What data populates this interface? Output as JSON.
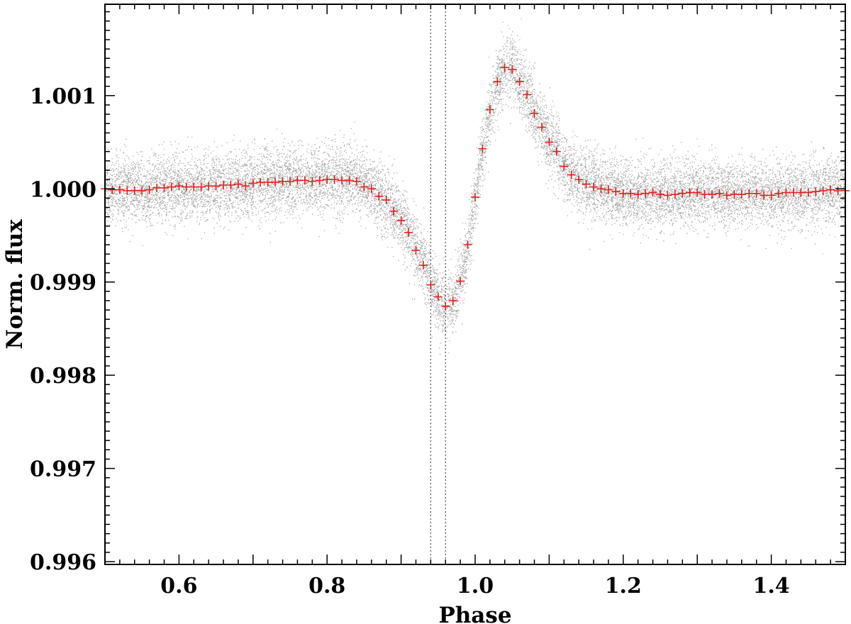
{
  "chart_data": {
    "type": "scatter",
    "xlabel": "Phase",
    "ylabel": "Norm. flux",
    "xlim": [
      0.5,
      1.5
    ],
    "ylim": [
      0.99597,
      1.00198
    ],
    "xticks": [
      0.6,
      0.8,
      1.0,
      1.2,
      1.4
    ],
    "xtick_labels": [
      "0.6",
      "0.8",
      "1.0",
      "1.2",
      "1.4"
    ],
    "yticks": [
      0.996,
      0.997,
      0.998,
      0.999,
      1.0,
      1.001
    ],
    "ytick_labels": [
      "0.996",
      "0.997",
      "0.998",
      "0.999",
      "1.000",
      "1.001"
    ],
    "grid": false,
    "legend": "none",
    "vertical_lines": [
      0.94,
      0.96
    ],
    "colors": {
      "raw_points": "#a8a8a8",
      "binned_markers": "#dd2222",
      "axes": "#000000",
      "vertical_lines": "#666666"
    },
    "raw_scatter_noise_sigma": 0.00018,
    "series": [
      {
        "marker": "plus",
        "x": [
          0.5,
          0.51,
          0.52,
          0.53,
          0.54,
          0.55,
          0.56,
          0.57,
          0.58,
          0.59,
          0.6,
          0.61,
          0.62,
          0.63,
          0.64,
          0.65,
          0.66,
          0.67,
          0.68,
          0.69,
          0.7,
          0.71,
          0.72,
          0.73,
          0.74,
          0.75,
          0.76,
          0.77,
          0.78,
          0.79,
          0.8,
          0.81,
          0.82,
          0.83,
          0.84,
          0.85,
          0.86,
          0.87,
          0.88,
          0.89,
          0.9,
          0.91,
          0.92,
          0.93,
          0.94,
          0.95,
          0.96,
          0.97,
          0.98,
          0.99,
          1.0,
          1.01,
          1.02,
          1.03,
          1.04,
          1.05,
          1.06,
          1.07,
          1.08,
          1.09,
          1.1,
          1.11,
          1.12,
          1.13,
          1.14,
          1.15,
          1.16,
          1.17,
          1.18,
          1.19,
          1.2,
          1.21,
          1.22,
          1.23,
          1.24,
          1.25,
          1.26,
          1.27,
          1.28,
          1.29,
          1.3,
          1.31,
          1.32,
          1.33,
          1.34,
          1.35,
          1.36,
          1.37,
          1.38,
          1.39,
          1.4,
          1.41,
          1.42,
          1.43,
          1.44,
          1.45,
          1.46,
          1.47,
          1.48,
          1.49,
          1.5
        ],
        "y": [
          1.0,
          0.99999,
          0.99999,
          0.99998,
          0.99998,
          0.99998,
          0.99999,
          1.00001,
          1.00001,
          1.00002,
          1.00003,
          1.00002,
          1.00002,
          1.00002,
          1.00003,
          1.00003,
          1.00004,
          1.00004,
          1.00005,
          1.00003,
          1.00006,
          1.00007,
          1.00007,
          1.00007,
          1.00008,
          1.00008,
          1.00009,
          1.00009,
          1.00008,
          1.00009,
          1.0001,
          1.0001,
          1.00009,
          1.00009,
          1.00008,
          1.00002,
          1.0,
          0.99992,
          0.99988,
          0.99976,
          0.99966,
          0.99953,
          0.99934,
          0.99918,
          0.99897,
          0.99884,
          0.99874,
          0.9988,
          0.99901,
          0.9994,
          0.99991,
          1.00043,
          1.00085,
          1.00115,
          1.0013,
          1.00128,
          1.00115,
          1.00101,
          1.00081,
          1.00066,
          1.0005,
          1.0004,
          1.00024,
          1.00015,
          1.0001,
          1.00005,
          1.00002,
          1.0,
          0.99999,
          0.99997,
          0.99995,
          0.99995,
          0.99994,
          0.99995,
          0.99996,
          0.99994,
          0.99993,
          0.99994,
          0.99995,
          0.99996,
          0.99996,
          0.99994,
          0.99994,
          0.99995,
          0.99993,
          0.99994,
          0.99994,
          0.99995,
          0.99995,
          0.99993,
          0.99993,
          0.99995,
          0.99996,
          0.99996,
          0.99996,
          0.99996,
          0.99997,
          0.99998,
          0.99999,
          0.99998,
          0.99998
        ]
      }
    ]
  }
}
